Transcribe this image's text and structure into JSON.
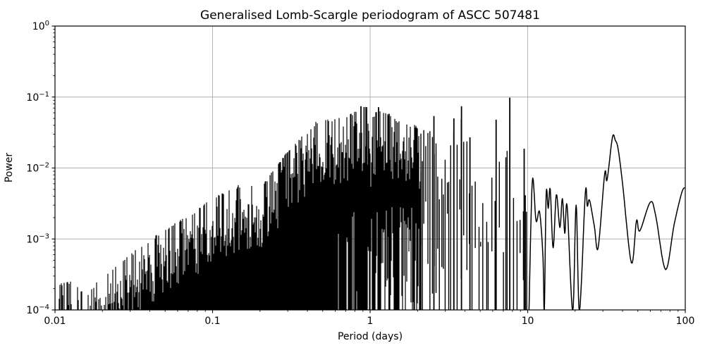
{
  "title": "Generalised Lomb-Scargle periodogram of ASCC 507481",
  "xlabel": "Period (days)",
  "ylabel": "Power",
  "chart_data": {
    "type": "line",
    "title": "Generalised Lomb-Scargle periodogram of ASCC 507481",
    "xlabel": "Period (days)",
    "ylabel": "Power",
    "x_scale": "log",
    "y_scale": "log",
    "xlim": [
      0.01,
      100
    ],
    "ylim": [
      0.0001,
      1
    ],
    "grid": true,
    "legend": "none",
    "line_color": "#000000",
    "grid_color": "#b0b0b0",
    "x_ticks": [
      {
        "value": 0.01,
        "label": "0.01"
      },
      {
        "value": 0.1,
        "label": "0.1"
      },
      {
        "value": 1,
        "label": "1"
      },
      {
        "value": 10,
        "label": "10"
      },
      {
        "value": 100,
        "label": "100"
      }
    ],
    "y_ticks": [
      {
        "value": 1,
        "base": "10",
        "exp": "0"
      },
      {
        "value": 0.1,
        "base": "10",
        "exp": "−1"
      },
      {
        "value": 0.01,
        "base": "10",
        "exp": "−2"
      },
      {
        "value": 0.001,
        "base": "10",
        "exp": "−3"
      },
      {
        "value": 0.0001,
        "base": "10",
        "exp": "−4"
      }
    ],
    "dense_region_period_range": [
      0.01,
      2.1
    ],
    "resolved_spike_region_period_range": [
      2.1,
      10.2
    ],
    "upper_envelope": [
      [
        0.01,
        0.00023
      ],
      [
        0.013,
        0.00026
      ],
      [
        0.016,
        0.00016
      ],
      [
        0.019,
        0.00029
      ],
      [
        0.024,
        0.0004
      ],
      [
        0.029,
        0.0006
      ],
      [
        0.034,
        0.00075
      ],
      [
        0.046,
        0.00125
      ],
      [
        0.061,
        0.0019
      ],
      [
        0.085,
        0.0029
      ],
      [
        0.1,
        0.0038
      ],
      [
        0.13,
        0.0055
      ],
      [
        0.16,
        0.006
      ],
      [
        0.2,
        0.0052
      ],
      [
        0.27,
        0.013
      ],
      [
        0.31,
        0.019
      ],
      [
        0.38,
        0.03
      ],
      [
        0.46,
        0.047
      ],
      [
        0.53,
        0.049
      ],
      [
        0.6,
        0.052
      ],
      [
        0.78,
        0.06
      ],
      [
        0.875,
        0.074
      ],
      [
        0.95,
        0.072
      ],
      [
        1.0,
        0.045
      ],
      [
        1.13,
        0.072
      ],
      [
        1.32,
        0.058
      ],
      [
        1.5,
        0.046
      ],
      [
        1.71,
        0.043
      ],
      [
        2.0,
        0.04
      ],
      [
        2.54,
        0.054
      ],
      [
        2.9,
        0.013
      ],
      [
        3.4,
        0.05
      ],
      [
        3.8,
        0.074
      ],
      [
        4.3,
        0.027
      ],
      [
        5.0,
        0.009
      ],
      [
        5.6,
        0.007
      ],
      [
        6.3,
        0.048
      ],
      [
        7.0,
        0.009
      ],
      [
        7.7,
        0.098
      ],
      [
        8.2,
        0.006
      ],
      [
        8.6,
        0.0052
      ],
      [
        9.1,
        0.007
      ],
      [
        9.5,
        0.0187
      ],
      [
        10.2,
        0.0066
      ]
    ],
    "major_peaks": [
      [
        0.875,
        0.074
      ],
      [
        0.95,
        0.072
      ],
      [
        1.13,
        0.072
      ],
      [
        1.32,
        0.058
      ],
      [
        2.54,
        0.054
      ],
      [
        3.4,
        0.05
      ],
      [
        3.8,
        0.074
      ],
      [
        4.3,
        0.027
      ],
      [
        6.3,
        0.048
      ],
      [
        7.7,
        0.098
      ],
      [
        9.5,
        0.0187
      ]
    ],
    "smooth_tail": [
      [
        10.2,
        0.0001
      ],
      [
        10.7,
        0.0066
      ],
      [
        11.3,
        0.0018
      ],
      [
        11.9,
        0.0024
      ],
      [
        12.5,
        0.00055
      ],
      [
        12.75,
        0.0001
      ],
      [
        13.1,
        0.0043
      ],
      [
        13.5,
        0.0027
      ],
      [
        13.9,
        0.005
      ],
      [
        14.5,
        0.00075
      ],
      [
        15.2,
        0.0042
      ],
      [
        16.0,
        0.00145
      ],
      [
        16.6,
        0.0037
      ],
      [
        17.2,
        0.0012
      ],
      [
        17.8,
        0.0029
      ],
      [
        19.3,
        9e-05
      ],
      [
        20.3,
        0.003
      ],
      [
        21.3,
        9e-05
      ],
      [
        23.2,
        0.0044
      ],
      [
        23.9,
        0.0029
      ],
      [
        24.7,
        0.0035
      ],
      [
        26.5,
        0.0015
      ],
      [
        28.0,
        0.00075
      ],
      [
        30.8,
        0.0083
      ],
      [
        31.9,
        0.0068
      ],
      [
        34.5,
        0.027
      ],
      [
        36.0,
        0.0245
      ],
      [
        37.5,
        0.0185
      ],
      [
        40.0,
        0.006
      ],
      [
        45.5,
        0.00046
      ],
      [
        49.0,
        0.0018
      ],
      [
        51.5,
        0.0013
      ],
      [
        60.0,
        0.0033
      ],
      [
        65.0,
        0.0021
      ],
      [
        75.0,
        0.00037
      ],
      [
        85.0,
        0.0016
      ],
      [
        95.0,
        0.0045
      ],
      [
        100.0,
        0.0053
      ]
    ]
  }
}
